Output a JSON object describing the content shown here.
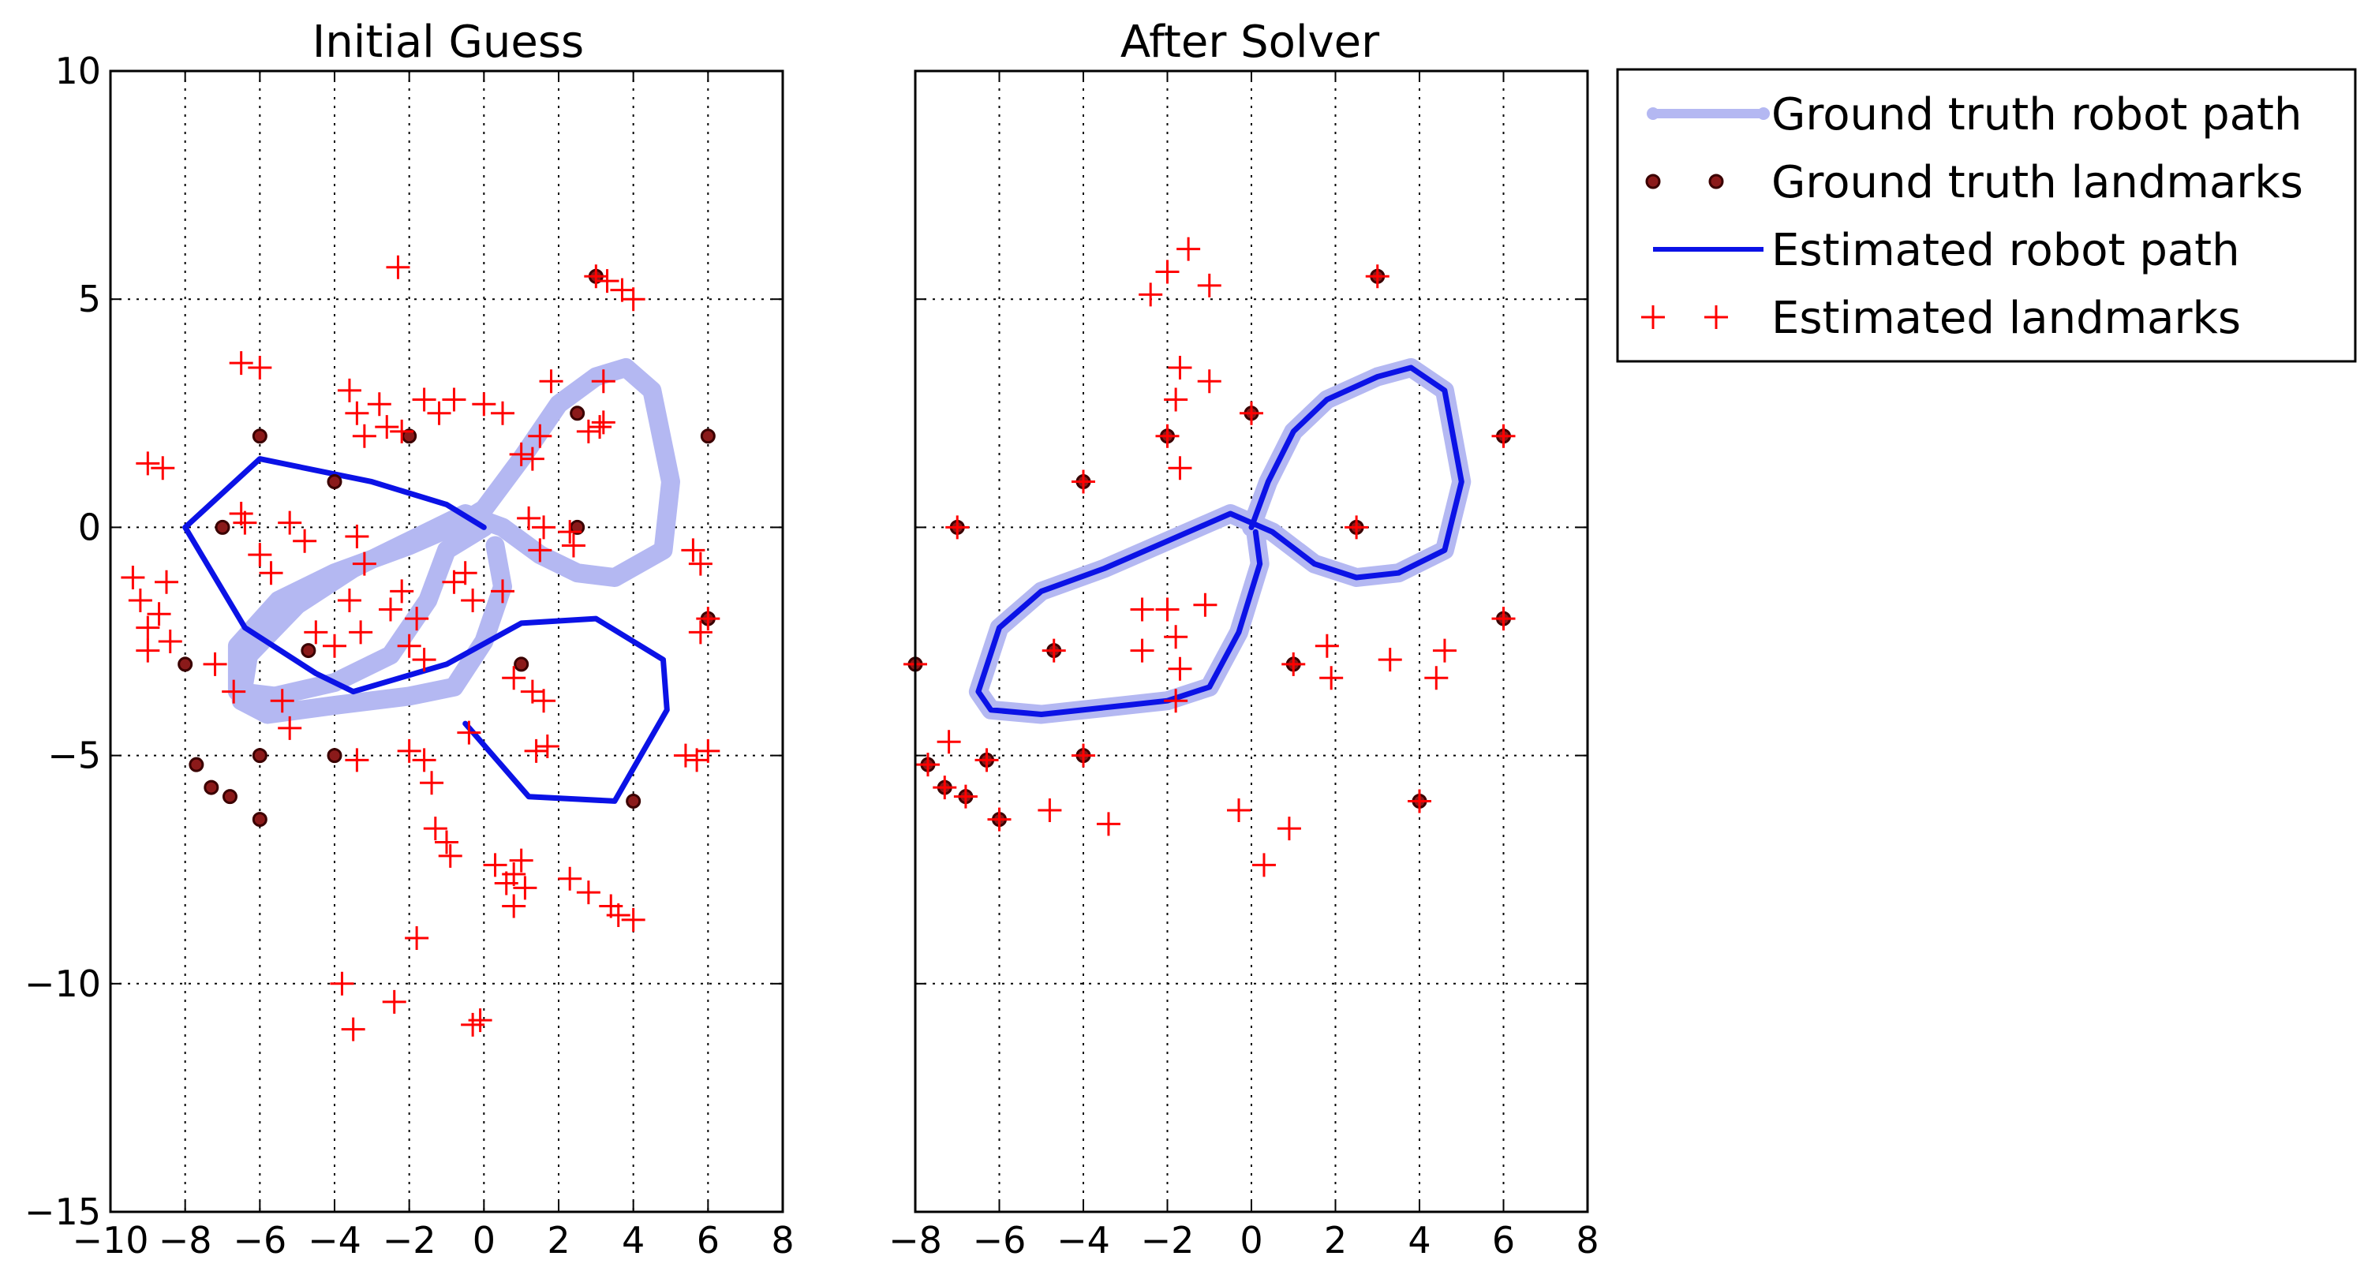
{
  "colors": {
    "gt_path": "#b4b8f2",
    "gt_landmark_fill": "#8b1a1a",
    "gt_landmark_edge": "#3a0000",
    "est_path": "#0b12e6",
    "est_landmark": "#ff0000",
    "grid": "#000000"
  },
  "legend": {
    "placement": "outside-right-top",
    "items": [
      {
        "label": "Ground truth robot path",
        "style": "gt_path"
      },
      {
        "label": "Ground truth landmarks",
        "style": "gt_landmark"
      },
      {
        "label": "Estimated robot path",
        "style": "est_path"
      },
      {
        "label": "Estimated landmarks",
        "style": "est_landmark"
      }
    ]
  },
  "chart_data": [
    {
      "type": "scatter",
      "title": "Initial Guess",
      "xlim": [
        -10,
        8
      ],
      "ylim": [
        -15,
        10
      ],
      "xticks": [
        -10,
        -8,
        -6,
        -4,
        -2,
        0,
        2,
        4,
        6,
        8
      ],
      "yticks": [
        -15,
        -10,
        -5,
        0,
        5,
        10
      ],
      "xtick_labels": [
        "−10",
        "−8",
        "−6",
        "−4",
        "−2",
        "0",
        "2",
        "4",
        "6",
        "8"
      ],
      "ytick_labels": [
        "−15",
        "−10",
        "−5",
        "0",
        "5",
        "10"
      ],
      "grid": true,
      "gt_path": [
        [
          0,
          0
        ],
        [
          -1,
          -0.5
        ],
        [
          -1.5,
          -1.6
        ],
        [
          -2.5,
          -2.8
        ],
        [
          -4,
          -3.4
        ],
        [
          -5.6,
          -3.7
        ],
        [
          -6.6,
          -3.6
        ],
        [
          -6.6,
          -2.6
        ],
        [
          -5.5,
          -1.6
        ],
        [
          -4,
          -1
        ],
        [
          -2,
          -0.4
        ],
        [
          -0.6,
          0.1
        ],
        [
          0,
          0.4
        ],
        [
          1,
          1.5
        ],
        [
          2,
          2.7
        ],
        [
          3,
          3.3
        ],
        [
          3.8,
          3.5
        ],
        [
          4.5,
          3.0
        ],
        [
          5,
          1
        ],
        [
          4.8,
          -0.5
        ],
        [
          3.5,
          -1.1
        ],
        [
          2.5,
          -1.0
        ],
        [
          1.5,
          -0.6
        ],
        [
          0.5,
          0
        ],
        [
          -0.5,
          0.3
        ],
        [
          -2,
          -0.3
        ],
        [
          -3.5,
          -0.9
        ],
        [
          -5,
          -1.7
        ],
        [
          -6.3,
          -2.8
        ],
        [
          -6.5,
          -3.8
        ],
        [
          -5.8,
          -4.1
        ],
        [
          -4,
          -3.9
        ],
        [
          -2,
          -3.7
        ],
        [
          -0.8,
          -3.5
        ],
        [
          0,
          -2.5
        ],
        [
          0.5,
          -1.3
        ],
        [
          0.3,
          -0.4
        ]
      ],
      "est_path": [
        [
          0,
          0
        ],
        [
          -1,
          0.5
        ],
        [
          -3,
          1
        ],
        [
          -6,
          1.5
        ],
        [
          -8,
          0
        ],
        [
          -6.4,
          -2.2
        ],
        [
          -4.5,
          -3.2
        ],
        [
          -3.5,
          -3.6
        ],
        [
          -1,
          -3
        ],
        [
          1,
          -2.1
        ],
        [
          3,
          -2
        ],
        [
          4.8,
          -2.9
        ],
        [
          4.9,
          -4
        ],
        [
          3.5,
          -6
        ],
        [
          1.2,
          -5.9
        ],
        [
          -0.5,
          -4.3
        ]
      ],
      "gt_landmarks": [
        [
          3,
          5.5
        ],
        [
          -6,
          2
        ],
        [
          -2,
          2
        ],
        [
          -4,
          1
        ],
        [
          2.5,
          2.5
        ],
        [
          6,
          2
        ],
        [
          2.5,
          0
        ],
        [
          -7,
          0
        ],
        [
          6,
          -2
        ],
        [
          -8,
          -3
        ],
        [
          -4.7,
          -2.7
        ],
        [
          1,
          -3
        ],
        [
          -6,
          -5
        ],
        [
          -4,
          -5
        ],
        [
          4,
          -6
        ],
        [
          -7.7,
          -5.2
        ],
        [
          -7.3,
          -5.7
        ],
        [
          -6.8,
          -5.9
        ],
        [
          -6,
          -6.4
        ]
      ],
      "est_landmarks": [
        [
          -2.3,
          5.7
        ],
        [
          3,
          5.5
        ],
        [
          3.3,
          5.4
        ],
        [
          3.7,
          5.2
        ],
        [
          4,
          5
        ],
        [
          -6.5,
          3.6
        ],
        [
          -6,
          3.5
        ],
        [
          -3.6,
          3.0
        ],
        [
          -3.4,
          2.5
        ],
        [
          -3.2,
          2
        ],
        [
          -2.8,
          2.7
        ],
        [
          -2.6,
          2.2
        ],
        [
          -2.2,
          2.1
        ],
        [
          -1.6,
          2.8
        ],
        [
          -1.2,
          2.5
        ],
        [
          -0.8,
          2.8
        ],
        [
          0,
          2.7
        ],
        [
          0.5,
          2.5
        ],
        [
          1.5,
          2.0
        ],
        [
          1.3,
          1.5
        ],
        [
          1,
          1.6
        ],
        [
          1.8,
          3.2
        ],
        [
          3.2,
          3.2
        ],
        [
          3.2,
          2.3
        ],
        [
          2.8,
          2.1
        ],
        [
          -9,
          1.4
        ],
        [
          -8.6,
          1.3
        ],
        [
          -6.4,
          0.1
        ],
        [
          -6.5,
          0.3
        ],
        [
          -5.2,
          0.1
        ],
        [
          -4.8,
          -0.3
        ],
        [
          -3.4,
          -0.2
        ],
        [
          -3.2,
          -0.8
        ],
        [
          -6,
          -0.6
        ],
        [
          -5.7,
          -1.0
        ],
        [
          -9.4,
          -1.1
        ],
        [
          -9.2,
          -1.6
        ],
        [
          -8.5,
          -1.2
        ],
        [
          -8.7,
          -1.9
        ],
        [
          -9,
          -2.2
        ],
        [
          -9,
          -2.7
        ],
        [
          -8.4,
          -2.5
        ],
        [
          -7.2,
          -3.0
        ],
        [
          -6.7,
          -3.6
        ],
        [
          -5.4,
          -3.8
        ],
        [
          -5.2,
          -4.4
        ],
        [
          -4.5,
          -2.3
        ],
        [
          -4,
          -2.6
        ],
        [
          -3.6,
          -1.6
        ],
        [
          -3.3,
          -2.3
        ],
        [
          -2.5,
          -1.8
        ],
        [
          -2.2,
          -1.4
        ],
        [
          -1.8,
          -2.0
        ],
        [
          -2,
          -2.6
        ],
        [
          -1.6,
          -2.9
        ],
        [
          -0.8,
          -1.2
        ],
        [
          -0.5,
          -1.0
        ],
        [
          -0.3,
          -1.6
        ],
        [
          0.5,
          -1.4
        ],
        [
          1.2,
          0.2
        ],
        [
          1.6,
          0
        ],
        [
          1.5,
          -0.5
        ],
        [
          2.3,
          -0.1
        ],
        [
          2.4,
          -0.4
        ],
        [
          0.8,
          -3.3
        ],
        [
          1.3,
          -3.6
        ],
        [
          1.6,
          -3.8
        ],
        [
          1.4,
          -4.9
        ],
        [
          1.7,
          -4.8
        ],
        [
          5.6,
          -0.5
        ],
        [
          5.8,
          -0.8
        ],
        [
          6,
          -2.0
        ],
        [
          5.8,
          -2.3
        ],
        [
          5.4,
          -5.0
        ],
        [
          5.7,
          -5.1
        ],
        [
          6,
          -4.9
        ],
        [
          -2,
          -4.9
        ],
        [
          -1.6,
          -5.1
        ],
        [
          -1.4,
          -5.6
        ],
        [
          -1.3,
          -6.6
        ],
        [
          -1.0,
          -6.9
        ],
        [
          -0.9,
          -7.2
        ],
        [
          0.3,
          -7.4
        ],
        [
          0.6,
          -7.8
        ],
        [
          0.8,
          -7.6
        ],
        [
          1,
          -7.3
        ],
        [
          1.1,
          -7.9
        ],
        [
          0.8,
          -8.3
        ],
        [
          2.3,
          -7.7
        ],
        [
          2.8,
          -8.0
        ],
        [
          3.4,
          -8.3
        ],
        [
          3.6,
          -8.5
        ],
        [
          4,
          -8.6
        ],
        [
          -3.4,
          -5.1
        ],
        [
          -0.4,
          -4.5
        ],
        [
          -1.8,
          -9.0
        ],
        [
          -3.8,
          -10.0
        ],
        [
          -3.5,
          -11.0
        ],
        [
          -2.4,
          -10.4
        ],
        [
          -0.3,
          -10.9
        ],
        [
          -0.1,
          -10.8
        ],
        [
          3.1,
          2.2
        ]
      ]
    },
    {
      "type": "scatter",
      "title": "After Solver",
      "xlim": [
        -8,
        8
      ],
      "ylim": [
        -15,
        10
      ],
      "xticks": [
        -8,
        -6,
        -4,
        -2,
        0,
        2,
        4,
        6,
        8
      ],
      "yticks": [
        -15,
        -10,
        -5,
        0,
        5,
        10
      ],
      "xtick_labels": [
        "−8",
        "−6",
        "−4",
        "−2",
        "0",
        "2",
        "4",
        "6",
        "8"
      ],
      "ytick_labels": [],
      "grid": true,
      "gt_path": [
        [
          0,
          0
        ],
        [
          0.4,
          1
        ],
        [
          1,
          2.1
        ],
        [
          1.8,
          2.8
        ],
        [
          3,
          3.3
        ],
        [
          3.8,
          3.5
        ],
        [
          4.6,
          3.0
        ],
        [
          5,
          1
        ],
        [
          4.6,
          -0.5
        ],
        [
          3.5,
          -1.0
        ],
        [
          2.5,
          -1.1
        ],
        [
          1.5,
          -0.8
        ],
        [
          0.5,
          -0.1
        ],
        [
          -0.5,
          0.3
        ],
        [
          -2,
          -0.3
        ],
        [
          -3.5,
          -0.9
        ],
        [
          -5,
          -1.4
        ],
        [
          -6,
          -2.2
        ],
        [
          -6.5,
          -3.6
        ],
        [
          -6.2,
          -4.0
        ],
        [
          -5,
          -4.1
        ],
        [
          -3,
          -3.9
        ],
        [
          -2,
          -3.8
        ],
        [
          -1,
          -3.5
        ],
        [
          -0.3,
          -2.3
        ],
        [
          0.2,
          -0.8
        ],
        [
          0.1,
          -0.1
        ]
      ],
      "est_path": [
        [
          0,
          0
        ],
        [
          0.4,
          1
        ],
        [
          1,
          2.1
        ],
        [
          1.8,
          2.8
        ],
        [
          3,
          3.3
        ],
        [
          3.8,
          3.5
        ],
        [
          4.6,
          3.0
        ],
        [
          5,
          1
        ],
        [
          4.6,
          -0.5
        ],
        [
          3.5,
          -1.0
        ],
        [
          2.5,
          -1.1
        ],
        [
          1.5,
          -0.8
        ],
        [
          0.5,
          -0.1
        ],
        [
          -0.5,
          0.3
        ],
        [
          -2,
          -0.3
        ],
        [
          -3.5,
          -0.9
        ],
        [
          -5,
          -1.4
        ],
        [
          -6,
          -2.2
        ],
        [
          -6.5,
          -3.6
        ],
        [
          -6.2,
          -4.0
        ],
        [
          -5,
          -4.1
        ],
        [
          -3,
          -3.9
        ],
        [
          -2,
          -3.8
        ],
        [
          -1,
          -3.5
        ],
        [
          -0.3,
          -2.3
        ],
        [
          0.2,
          -0.8
        ],
        [
          0.1,
          -0.1
        ]
      ],
      "gt_landmarks": [
        [
          3,
          5.5
        ],
        [
          0,
          2.5
        ],
        [
          -2,
          2
        ],
        [
          6,
          2
        ],
        [
          -4,
          1
        ],
        [
          -7,
          0
        ],
        [
          2.5,
          0
        ],
        [
          6,
          -2
        ],
        [
          -8,
          -3
        ],
        [
          -4.7,
          -2.7
        ],
        [
          1,
          -3
        ],
        [
          -4,
          -5
        ],
        [
          -6.3,
          -5.1
        ],
        [
          -7.7,
          -5.2
        ],
        [
          -7.3,
          -5.7
        ],
        [
          -6.8,
          -5.9
        ],
        [
          -6,
          -6.4
        ],
        [
          4,
          -6
        ]
      ],
      "est_landmarks": [
        [
          -1.5,
          6.1
        ],
        [
          -2.0,
          5.6
        ],
        [
          -1.0,
          5.3
        ],
        [
          -2.4,
          5.1
        ],
        [
          3,
          5.5
        ],
        [
          -1.7,
          3.5
        ],
        [
          -1.0,
          3.2
        ],
        [
          -1.8,
          2.8
        ],
        [
          0,
          2.5
        ],
        [
          -2,
          2.0
        ],
        [
          6,
          2.0
        ],
        [
          -1.7,
          1.3
        ],
        [
          -4,
          1
        ],
        [
          -7,
          0
        ],
        [
          2.5,
          0
        ],
        [
          -2.6,
          -1.8
        ],
        [
          -2,
          -1.8
        ],
        [
          -1.1,
          -1.7
        ],
        [
          -2.6,
          -2.7
        ],
        [
          -1.8,
          -2.4
        ],
        [
          -1.7,
          -3.1
        ],
        [
          -1.8,
          -3.8
        ],
        [
          1.8,
          -2.6
        ],
        [
          1.9,
          -3.3
        ],
        [
          3.3,
          -2.9
        ],
        [
          4.4,
          -3.3
        ],
        [
          4.6,
          -2.7
        ],
        [
          6,
          -2
        ],
        [
          -8,
          -3
        ],
        [
          -4.7,
          -2.7
        ],
        [
          1,
          -3
        ],
        [
          -7.2,
          -4.7
        ],
        [
          -7.7,
          -5.2
        ],
        [
          -7.3,
          -5.7
        ],
        [
          -6.8,
          -5.9
        ],
        [
          -6.3,
          -5.1
        ],
        [
          -6,
          -6.4
        ],
        [
          -4,
          -5
        ],
        [
          -4.8,
          -6.2
        ],
        [
          -3.4,
          -6.5
        ],
        [
          -0.3,
          -6.2
        ],
        [
          0.3,
          -7.4
        ],
        [
          0.9,
          -6.6
        ],
        [
          4,
          -6
        ]
      ]
    }
  ]
}
